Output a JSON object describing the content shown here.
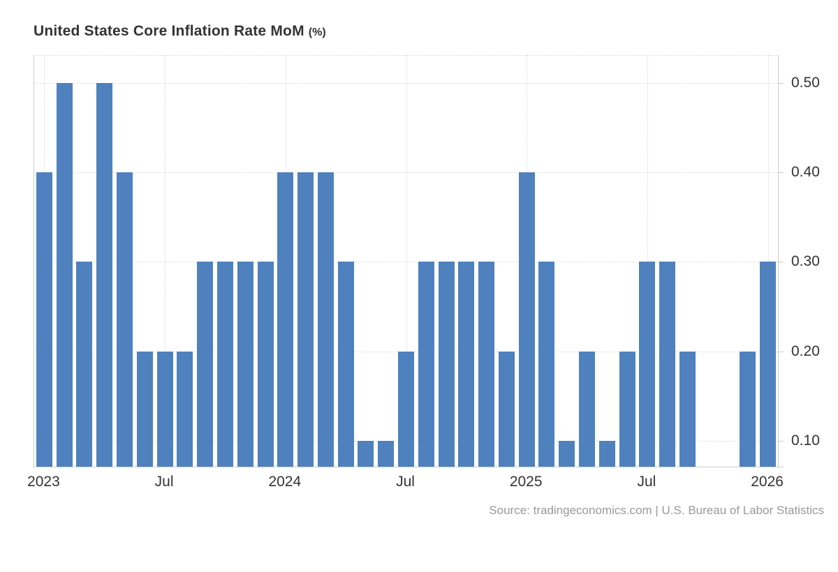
{
  "title": {
    "main": "United States Core Inflation Rate MoM",
    "unit": "(%)"
  },
  "source_text": "Source: tradingeconomics.com | U.S. Bureau of Labor Statistics",
  "chart_data": {
    "type": "bar",
    "title": "United States Core Inflation Rate MoM (%)",
    "xlabel": "",
    "ylabel": "",
    "legend_position": "none",
    "grid": "dotted",
    "categories": [
      "Jan 2023",
      "Feb 2023",
      "Mar 2023",
      "Apr 2023",
      "May 2023",
      "Jun 2023",
      "Jul 2023",
      "Aug 2023",
      "Sep 2023",
      "Oct 2023",
      "Nov 2023",
      "Dec 2023",
      "Jan 2024",
      "Feb 2024",
      "Mar 2024",
      "Apr 2024",
      "May 2024",
      "Jun 2024",
      "Jul 2024",
      "Aug 2024",
      "Sep 2024",
      "Oct 2024",
      "Nov 2024",
      "Dec 2024",
      "Jan 2025",
      "Feb 2025",
      "Mar 2025",
      "Apr 2025",
      "May 2025",
      "Jun 2025",
      "Jul 2025",
      "Aug 2025",
      "Sep 2025",
      "Oct 2025",
      "Nov 2025",
      "Dec 2025",
      "Jan 2026"
    ],
    "values": [
      0.4,
      0.5,
      0.3,
      0.5,
      0.4,
      0.2,
      0.2,
      0.2,
      0.3,
      0.3,
      0.3,
      0.3,
      0.4,
      0.4,
      0.4,
      0.3,
      0.1,
      0.1,
      0.2,
      0.3,
      0.3,
      0.3,
      0.3,
      0.2,
      0.4,
      0.3,
      0.1,
      0.2,
      0.1,
      0.2,
      0.3,
      0.3,
      0.2,
      null,
      null,
      0.2,
      0.3
    ],
    "x_ticks": [
      {
        "label": "2023",
        "index": 0
      },
      {
        "label": "Jul",
        "index": 6
      },
      {
        "label": "2024",
        "index": 12
      },
      {
        "label": "Jul",
        "index": 18
      },
      {
        "label": "2025",
        "index": 24
      },
      {
        "label": "Jul",
        "index": 30
      },
      {
        "label": "2026",
        "index": 36
      }
    ],
    "y_tick_values": [
      0.1,
      0.2,
      0.3,
      0.4,
      0.5
    ],
    "y_tick_labels": [
      "0.10",
      "0.20",
      "0.30",
      "0.40",
      "0.50"
    ],
    "ylim": [
      0.071,
      0.531
    ],
    "colors": {
      "bar": "#4e81bd",
      "grid": "#d9d9d9",
      "axis": "#cccccc",
      "text": "#333333",
      "source_text": "#999999",
      "background": "#ffffff"
    }
  }
}
